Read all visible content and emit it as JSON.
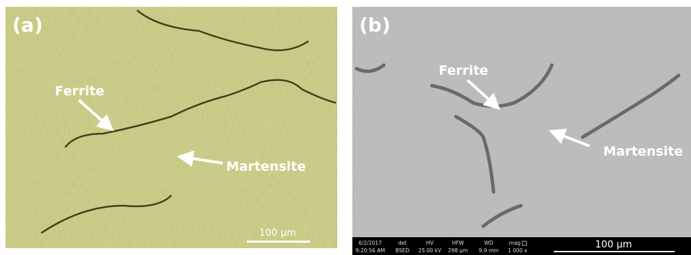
{
  "panels": [
    {
      "label": "(a)",
      "annotations": [
        {
          "text": "Ferrite"
        },
        {
          "text": "Martensite"
        }
      ],
      "scale_bar": "100 µm"
    },
    {
      "label": "(b)",
      "annotations": [
        {
          "text": "Ferrite"
        },
        {
          "text": "Martensite"
        }
      ],
      "scale_bar": "100 µm",
      "info_bar": [
        {
          "header": "6/2/2017",
          "value": "9:20:56 AM"
        },
        {
          "header": "det",
          "value": "BSED"
        },
        {
          "header": "HV",
          "value": "25.00 kV"
        },
        {
          "header": "HFW",
          "value": "298 µm"
        },
        {
          "header": "WD",
          "value": "9.9 mm"
        },
        {
          "header": "mag",
          "value": "1 000 x"
        }
      ]
    }
  ]
}
